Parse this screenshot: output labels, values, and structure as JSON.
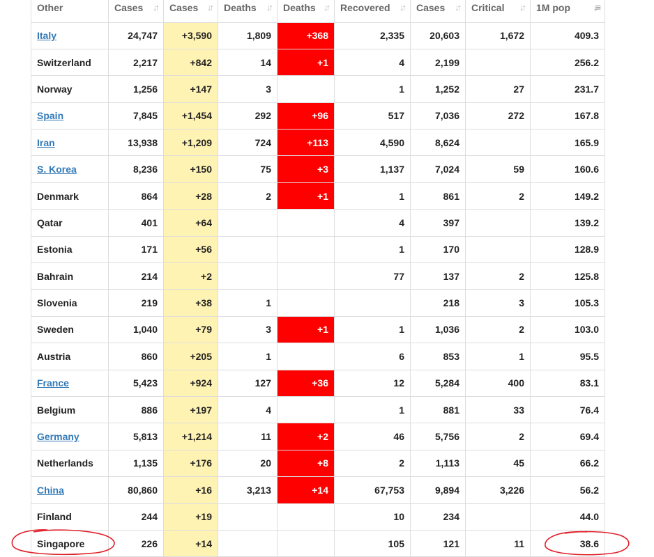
{
  "columns": [
    {
      "label": "Other"
    },
    {
      "label": "Cases"
    },
    {
      "label": "Cases"
    },
    {
      "label": "Deaths"
    },
    {
      "label": "Deaths"
    },
    {
      "label": "Recovered"
    },
    {
      "label": "Cases"
    },
    {
      "label": "Critical"
    },
    {
      "label": "1M pop"
    }
  ],
  "sort_icon": "sort-arrows-icon",
  "sorted_column_icon": "sort-descending-icon",
  "colors": {
    "new_cases_bg": "#fff3b3",
    "new_deaths_bg": "#ff0000",
    "link": "#337ab7",
    "annotation": "#e0202a"
  },
  "rows": [
    {
      "country": "Italy",
      "link": true,
      "total_cases": "24,747",
      "new_cases": "+3,590",
      "total_deaths": "1,809",
      "new_deaths": "+368",
      "recovered": "2,335",
      "active": "20,603",
      "critical": "1,672",
      "per_million": "409.3"
    },
    {
      "country": "Switzerland",
      "link": false,
      "total_cases": "2,217",
      "new_cases": "+842",
      "total_deaths": "14",
      "new_deaths": "+1",
      "recovered": "4",
      "active": "2,199",
      "critical": "",
      "per_million": "256.2"
    },
    {
      "country": "Norway",
      "link": false,
      "total_cases": "1,256",
      "new_cases": "+147",
      "total_deaths": "3",
      "new_deaths": "",
      "recovered": "1",
      "active": "1,252",
      "critical": "27",
      "per_million": "231.7"
    },
    {
      "country": "Spain",
      "link": true,
      "total_cases": "7,845",
      "new_cases": "+1,454",
      "total_deaths": "292",
      "new_deaths": "+96",
      "recovered": "517",
      "active": "7,036",
      "critical": "272",
      "per_million": "167.8"
    },
    {
      "country": "Iran",
      "link": true,
      "total_cases": "13,938",
      "new_cases": "+1,209",
      "total_deaths": "724",
      "new_deaths": "+113",
      "recovered": "4,590",
      "active": "8,624",
      "critical": "",
      "per_million": "165.9"
    },
    {
      "country": "S. Korea",
      "link": true,
      "total_cases": "8,236",
      "new_cases": "+150",
      "total_deaths": "75",
      "new_deaths": "+3",
      "recovered": "1,137",
      "active": "7,024",
      "critical": "59",
      "per_million": "160.6"
    },
    {
      "country": "Denmark",
      "link": false,
      "total_cases": "864",
      "new_cases": "+28",
      "total_deaths": "2",
      "new_deaths": "+1",
      "recovered": "1",
      "active": "861",
      "critical": "2",
      "per_million": "149.2"
    },
    {
      "country": "Qatar",
      "link": false,
      "total_cases": "401",
      "new_cases": "+64",
      "total_deaths": "",
      "new_deaths": "",
      "recovered": "4",
      "active": "397",
      "critical": "",
      "per_million": "139.2"
    },
    {
      "country": "Estonia",
      "link": false,
      "total_cases": "171",
      "new_cases": "+56",
      "total_deaths": "",
      "new_deaths": "",
      "recovered": "1",
      "active": "170",
      "critical": "",
      "per_million": "128.9"
    },
    {
      "country": "Bahrain",
      "link": false,
      "total_cases": "214",
      "new_cases": "+2",
      "total_deaths": "",
      "new_deaths": "",
      "recovered": "77",
      "active": "137",
      "critical": "2",
      "per_million": "125.8"
    },
    {
      "country": "Slovenia",
      "link": false,
      "total_cases": "219",
      "new_cases": "+38",
      "total_deaths": "1",
      "new_deaths": "",
      "recovered": "",
      "active": "218",
      "critical": "3",
      "per_million": "105.3"
    },
    {
      "country": "Sweden",
      "link": false,
      "total_cases": "1,040",
      "new_cases": "+79",
      "total_deaths": "3",
      "new_deaths": "+1",
      "recovered": "1",
      "active": "1,036",
      "critical": "2",
      "per_million": "103.0"
    },
    {
      "country": "Austria",
      "link": false,
      "total_cases": "860",
      "new_cases": "+205",
      "total_deaths": "1",
      "new_deaths": "",
      "recovered": "6",
      "active": "853",
      "critical": "1",
      "per_million": "95.5"
    },
    {
      "country": "France",
      "link": true,
      "total_cases": "5,423",
      "new_cases": "+924",
      "total_deaths": "127",
      "new_deaths": "+36",
      "recovered": "12",
      "active": "5,284",
      "critical": "400",
      "per_million": "83.1"
    },
    {
      "country": "Belgium",
      "link": false,
      "total_cases": "886",
      "new_cases": "+197",
      "total_deaths": "4",
      "new_deaths": "",
      "recovered": "1",
      "active": "881",
      "critical": "33",
      "per_million": "76.4"
    },
    {
      "country": "Germany",
      "link": true,
      "total_cases": "5,813",
      "new_cases": "+1,214",
      "total_deaths": "11",
      "new_deaths": "+2",
      "recovered": "46",
      "active": "5,756",
      "critical": "2",
      "per_million": "69.4"
    },
    {
      "country": "Netherlands",
      "link": false,
      "total_cases": "1,135",
      "new_cases": "+176",
      "total_deaths": "20",
      "new_deaths": "+8",
      "recovered": "2",
      "active": "1,113",
      "critical": "45",
      "per_million": "66.2"
    },
    {
      "country": "China",
      "link": true,
      "total_cases": "80,860",
      "new_cases": "+16",
      "total_deaths": "3,213",
      "new_deaths": "+14",
      "recovered": "67,753",
      "active": "9,894",
      "critical": "3,226",
      "per_million": "56.2"
    },
    {
      "country": "Finland",
      "link": false,
      "total_cases": "244",
      "new_cases": "+19",
      "total_deaths": "",
      "new_deaths": "",
      "recovered": "10",
      "active": "234",
      "critical": "",
      "per_million": "44.0"
    },
    {
      "country": "Singapore",
      "link": false,
      "total_cases": "226",
      "new_cases": "+14",
      "total_deaths": "",
      "new_deaths": "",
      "recovered": "105",
      "active": "121",
      "critical": "11",
      "per_million": "38.6"
    }
  ]
}
